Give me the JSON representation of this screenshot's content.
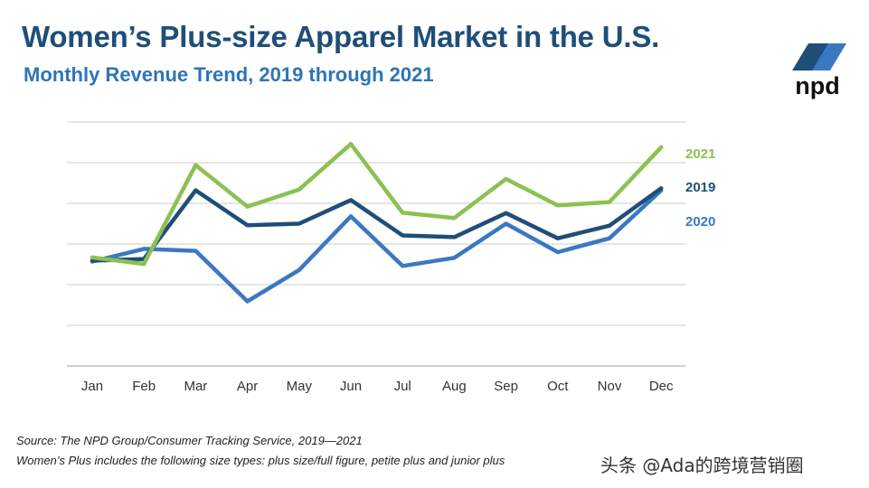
{
  "header": {
    "title": "Women’s Plus-size Apparel Market in the U.S.",
    "subtitle": "Monthly Revenue Trend, 2019 through 2021"
  },
  "logo": {
    "text": "npd"
  },
  "chart_data": {
    "type": "line",
    "title": "Women’s Plus-size Apparel Market in the U.S.",
    "subtitle": "Monthly Revenue Trend, 2019 through 2021",
    "xlabel": "",
    "ylabel": "",
    "categories": [
      "Jan",
      "Feb",
      "Mar",
      "Apr",
      "May",
      "Jun",
      "Jul",
      "Aug",
      "Sep",
      "Oct",
      "Nov",
      "Dec"
    ],
    "ylim": [
      0,
      6
    ],
    "grid": true,
    "legend_position": "right, at line ends",
    "series": [
      {
        "name": "2021",
        "color": "#8cc152",
        "values": [
          2.67,
          2.51,
          4.94,
          3.92,
          4.34,
          5.46,
          3.77,
          3.64,
          4.6,
          3.95,
          4.03,
          5.38
        ]
      },
      {
        "name": "2019",
        "color": "#1f4e79",
        "values": [
          2.59,
          2.63,
          4.32,
          3.46,
          3.5,
          4.08,
          3.21,
          3.17,
          3.76,
          3.14,
          3.45,
          4.37
        ]
      },
      {
        "name": "2020",
        "color": "#3a78c2",
        "values": [
          2.57,
          2.88,
          2.83,
          1.59,
          2.36,
          3.68,
          2.46,
          2.66,
          3.5,
          2.8,
          3.14,
          4.32
        ]
      }
    ]
  },
  "footer": {
    "source": "Source: The NPD Group/Consumer Tracking Service, 2019—2021",
    "note": "Women’s Plus includes the following size types: plus size/full figure, petite plus and junior plus",
    "watermark": "头条 @Ada的跨境营销圈"
  }
}
